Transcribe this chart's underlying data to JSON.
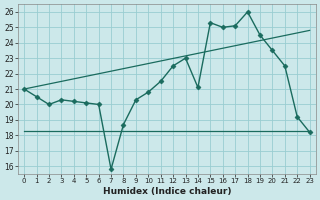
{
  "xlabel": "Humidex (Indice chaleur)",
  "background_color": "#cce8ea",
  "grid_color": "#99cdd1",
  "line_color": "#1a6b5e",
  "xlim": [
    -0.5,
    23.5
  ],
  "ylim": [
    15.5,
    26.5
  ],
  "yticks": [
    16,
    17,
    18,
    19,
    20,
    21,
    22,
    23,
    24,
    25,
    26
  ],
  "xticks": [
    0,
    1,
    2,
    3,
    4,
    5,
    6,
    7,
    8,
    9,
    10,
    11,
    12,
    13,
    14,
    15,
    16,
    17,
    18,
    19,
    20,
    21,
    22,
    23
  ],
  "line1_x": [
    0,
    1,
    2,
    3,
    4,
    5,
    6,
    7,
    8,
    9,
    10,
    11,
    12,
    13,
    14,
    15,
    16,
    17,
    18,
    19,
    20,
    21,
    22,
    23
  ],
  "line1_y": [
    21,
    20.5,
    20.0,
    20.3,
    20.2,
    20.1,
    20.0,
    15.8,
    18.7,
    20.3,
    20.8,
    21.5,
    22.5,
    23.0,
    21.1,
    25.3,
    25.0,
    25.1,
    26.0,
    24.5,
    23.5,
    22.5,
    19.2,
    18.2
  ],
  "line2_x": [
    0,
    23
  ],
  "line2_y": [
    21.0,
    24.8
  ],
  "line3_x": [
    0,
    23
  ],
  "line3_y": [
    18.3,
    18.3
  ],
  "marker": "D",
  "markersize": 2.5
}
